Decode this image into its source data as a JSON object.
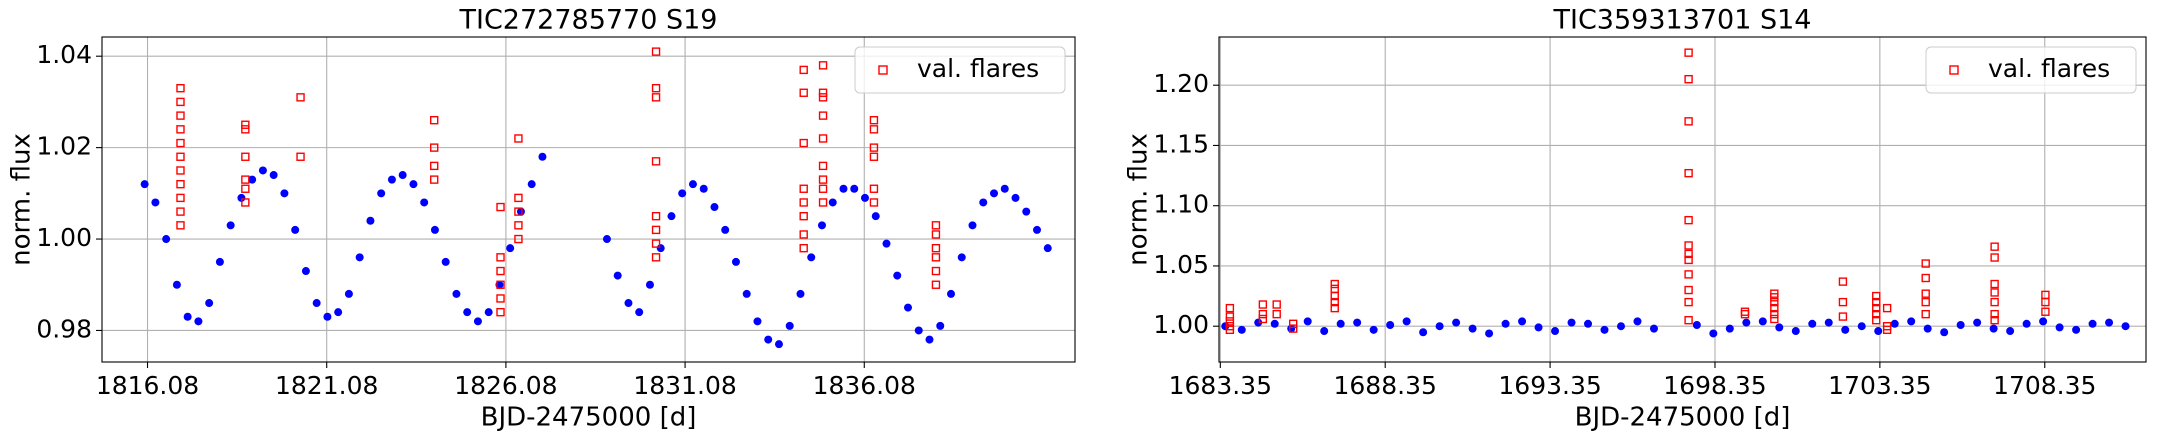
{
  "chart_data": [
    {
      "type": "scatter",
      "title": "TIC272785770 S19",
      "xlabel": "BJD-2475000 [d]",
      "ylabel": "norm. flux",
      "xlim": [
        1814.81,
        1841.96
      ],
      "ylim": [
        0.9731,
        1.0442
      ],
      "xticks": [
        1816.08,
        1821.08,
        1826.08,
        1831.08,
        1836.08
      ],
      "yticks": [
        0.98,
        {
          "value": 1,
          "label": "1.00"
        },
        1.02,
        1.04
      ],
      "grid": true,
      "legend": "upper right",
      "series": [
        {
          "color": "#0000ff",
          "marker": "dot",
          "x": [
            1816.0,
            1816.3,
            1816.6,
            1816.9,
            1817.2,
            1817.5,
            1817.8,
            1818.1,
            1818.4,
            1818.7,
            1819.0,
            1819.3,
            1819.6,
            1819.9,
            1820.2,
            1820.5,
            1820.8,
            1821.1,
            1821.4,
            1821.7,
            1822.0,
            1822.3,
            1822.6,
            1822.9,
            1823.2,
            1823.5,
            1823.8,
            1824.1,
            1824.4,
            1824.7,
            1825.0,
            1825.3,
            1825.6,
            1825.9,
            1826.2,
            1826.5,
            1826.8,
            1827.1,
            1828.9,
            1829.2,
            1829.5,
            1829.8,
            1830.1,
            1830.4,
            1830.7,
            1831.0,
            1831.3,
            1831.6,
            1831.9,
            1832.2,
            1832.5,
            1832.8,
            1833.1,
            1833.4,
            1833.7,
            1834.0,
            1834.3,
            1834.6,
            1834.9,
            1835.2,
            1835.5,
            1835.8,
            1836.1,
            1836.4,
            1836.7,
            1837.0,
            1837.3,
            1837.6,
            1837.9,
            1838.2,
            1838.5,
            1838.8,
            1839.1,
            1839.4,
            1839.7,
            1840.0,
            1840.3,
            1840.6,
            1840.9,
            1841.2
          ],
          "values": [
            1.012,
            1.008,
            1.0,
            0.99,
            0.983,
            0.982,
            0.986,
            0.995,
            1.003,
            1.009,
            1.013,
            1.015,
            1.014,
            1.01,
            1.002,
            0.993,
            0.986,
            0.983,
            0.984,
            0.988,
            0.996,
            1.004,
            1.01,
            1.013,
            1.014,
            1.012,
            1.008,
            1.002,
            0.995,
            0.988,
            0.984,
            0.982,
            0.984,
            0.99,
            0.998,
            1.006,
            1.012,
            1.018,
            1.0,
            0.992,
            0.986,
            0.984,
            0.99,
            0.998,
            1.005,
            1.01,
            1.012,
            1.011,
            1.007,
            1.002,
            0.995,
            0.988,
            0.982,
            0.978,
            0.977,
            0.981,
            0.988,
            0.996,
            1.003,
            1.008,
            1.011,
            1.011,
            1.009,
            1.005,
            0.999,
            0.992,
            0.985,
            0.98,
            0.978,
            0.981,
            0.988,
            0.996,
            1.003,
            1.008,
            1.01,
            1.011,
            1.009,
            1.006,
            1.002,
            0.998
          ]
        },
        {
          "name": "val. flares",
          "color": "#ff0000",
          "marker": "square",
          "x": [
            1817.0,
            1817.0,
            1817.0,
            1817.0,
            1817.0,
            1817.0,
            1817.0,
            1817.0,
            1817.0,
            1817.0,
            1817.0,
            1818.81,
            1818.81,
            1818.81,
            1818.81,
            1818.81,
            1818.81,
            1820.35,
            1820.35,
            1824.08,
            1824.08,
            1824.08,
            1824.08,
            1825.93,
            1825.93,
            1825.93,
            1825.93,
            1825.93,
            1825.93,
            1826.43,
            1826.43,
            1826.43,
            1826.43,
            1826.43,
            1830.27,
            1830.27,
            1830.27,
            1830.27,
            1830.27,
            1830.27,
            1830.27,
            1830.27,
            1834.39,
            1834.39,
            1834.39,
            1834.39,
            1834.39,
            1834.39,
            1834.39,
            1834.39,
            1834.93,
            1834.93,
            1834.93,
            1834.93,
            1834.93,
            1834.93,
            1834.93,
            1834.93,
            1834.93,
            1836.35,
            1836.35,
            1836.35,
            1836.35,
            1836.35,
            1836.35,
            1838.08,
            1838.08,
            1838.08,
            1838.08,
            1838.08,
            1838.08
          ],
          "values": [
            1.033,
            1.03,
            1.027,
            1.024,
            1.021,
            1.018,
            1.015,
            1.012,
            1.009,
            1.006,
            1.003,
            1.025,
            1.024,
            1.018,
            1.013,
            1.011,
            1.008,
            1.031,
            1.018,
            1.026,
            1.02,
            1.016,
            1.013,
            1.007,
            0.996,
            0.993,
            0.99,
            0.987,
            0.984,
            1.022,
            1.009,
            1.006,
            1.003,
            1.0,
            1.041,
            1.033,
            1.031,
            1.017,
            1.005,
            1.002,
            0.999,
            0.996,
            1.037,
            1.032,
            1.021,
            1.011,
            1.008,
            1.005,
            1.001,
            0.998,
            1.038,
            1.032,
            1.031,
            1.027,
            1.022,
            1.016,
            1.013,
            1.011,
            1.008,
            1.026,
            1.024,
            1.02,
            1.018,
            1.011,
            1.008,
            1.003,
            1.001,
            0.998,
            0.996,
            0.993,
            0.99
          ]
        }
      ]
    },
    {
      "type": "scatter",
      "title": "TIC359313701 S14",
      "xlabel": "BJD-2475000 [d]",
      "ylabel": "norm. flux",
      "xlim": [
        1683.31,
        1711.42
      ],
      "ylim": [
        0.9703,
        1.24
      ],
      "xticks": [
        1683.35,
        1688.35,
        1693.35,
        1698.35,
        1703.35,
        1708.35
      ],
      "yticks": [
        {
          "value": 1,
          "label": "1.00"
        },
        1.05,
        {
          "value": 1.1,
          "label": "1.10"
        },
        1.15,
        {
          "value": 1.2,
          "label": "1.20"
        }
      ],
      "grid": true,
      "legend": "upper right",
      "series": [
        {
          "color": "#0000ff",
          "marker": "dot",
          "x": [
            1683.5,
            1684.0,
            1684.5,
            1685.0,
            1685.5,
            1686.0,
            1686.5,
            1687.0,
            1687.5,
            1688.0,
            1688.5,
            1689.0,
            1689.5,
            1690.0,
            1690.5,
            1691.0,
            1691.5,
            1692.0,
            1692.5,
            1693.0,
            1693.5,
            1694.0,
            1694.5,
            1695.0,
            1695.5,
            1696.0,
            1696.5,
            1697.8,
            1698.3,
            1698.8,
            1699.3,
            1699.8,
            1700.3,
            1700.8,
            1701.3,
            1701.8,
            1702.3,
            1702.8,
            1703.3,
            1703.8,
            1704.3,
            1704.8,
            1705.3,
            1705.8,
            1706.3,
            1706.8,
            1707.3,
            1707.8,
            1708.3,
            1708.8,
            1709.3,
            1709.8,
            1710.3,
            1710.8
          ],
          "values": [
            1.0,
            0.997,
            1.003,
            1.002,
            0.998,
            1.004,
            0.996,
            1.002,
            1.003,
            0.997,
            1.001,
            1.004,
            0.995,
            1.0,
            1.003,
            0.998,
            0.994,
            1.002,
            1.004,
            0.999,
            0.996,
            1.003,
            1.002,
            0.997,
            1.0,
            1.004,
            0.998,
            1.001,
            0.994,
            0.998,
            1.003,
            1.004,
            0.999,
            0.996,
            1.002,
            1.003,
            0.997,
            1.0,
            0.996,
            1.002,
            1.004,
            0.998,
            0.995,
            1.001,
            1.003,
            0.998,
            0.996,
            1.002,
            1.004,
            0.999,
            0.997,
            1.002,
            1.003,
            1.0
          ]
        },
        {
          "name": "val. flares",
          "color": "#ff0000",
          "marker": "square",
          "x": [
            1683.64,
            1683.64,
            1683.64,
            1683.64,
            1683.64,
            1684.64,
            1684.64,
            1684.64,
            1685.06,
            1685.06,
            1685.56,
            1685.56,
            1686.82,
            1686.82,
            1686.82,
            1686.82,
            1686.82,
            1697.55,
            1697.55,
            1697.55,
            1697.55,
            1697.55,
            1697.55,
            1697.55,
            1697.55,
            1697.55,
            1697.55,
            1697.55,
            1697.55,
            1699.26,
            1699.26,
            1700.15,
            1700.15,
            1700.15,
            1700.15,
            1700.15,
            1700.15,
            1702.23,
            1702.23,
            1702.23,
            1703.24,
            1703.24,
            1703.24,
            1703.24,
            1703.24,
            1703.57,
            1703.57,
            1703.57,
            1704.74,
            1704.74,
            1704.74,
            1704.74,
            1704.74,
            1706.83,
            1706.83,
            1706.83,
            1706.83,
            1706.83,
            1706.83,
            1706.83,
            1708.37,
            1708.37,
            1708.37
          ],
          "values": [
            1.015,
            1.008,
            1.004,
            1.0,
            0.997,
            1.018,
            1.01,
            1.006,
            1.018,
            1.01,
            1.002,
            0.998,
            1.035,
            1.031,
            1.025,
            1.02,
            1.015,
            1.227,
            1.205,
            1.17,
            1.127,
            1.088,
            1.067,
            1.06,
            1.055,
            1.043,
            1.03,
            1.02,
            1.005,
            1.012,
            1.01,
            1.027,
            1.024,
            1.02,
            1.015,
            1.01,
            1.006,
            1.037,
            1.02,
            1.008,
            1.025,
            1.02,
            1.015,
            1.01,
            1.005,
            1.015,
            1.0,
            0.997,
            1.052,
            1.04,
            1.027,
            1.02,
            1.01,
            1.066,
            1.057,
            1.035,
            1.028,
            1.02,
            1.01,
            1.005,
            1.026,
            1.02,
            1.012
          ]
        }
      ]
    }
  ]
}
